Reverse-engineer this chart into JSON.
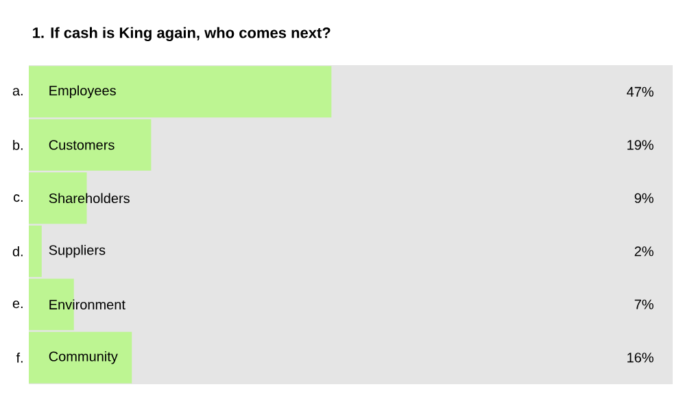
{
  "chart_data": {
    "type": "bar",
    "orientation": "horizontal",
    "title": "1. If cash is King again, who comes next?",
    "categories": [
      "Employees",
      "Customers",
      "Shareholders",
      "Suppliers",
      "Environment",
      "Community"
    ],
    "values": [
      47,
      19,
      9,
      2,
      7,
      16
    ],
    "value_labels": [
      "47%",
      "19%",
      "9%",
      "2%",
      "7%",
      "16%"
    ],
    "color": "#bdf592",
    "xlim": [
      0,
      100
    ],
    "annotations": [
      "a.",
      "b.",
      "c.",
      "d.",
      "e.",
      "f."
    ]
  }
}
